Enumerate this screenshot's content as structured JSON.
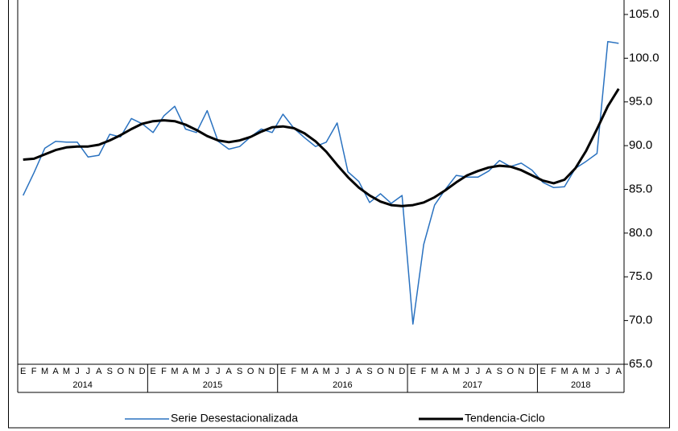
{
  "chart_data": {
    "type": "line",
    "groups": [
      {
        "name": "2014",
        "categories": [
          "E",
          "F",
          "M",
          "A",
          "M",
          "J",
          "J",
          "A",
          "S",
          "O",
          "N",
          "D"
        ]
      },
      {
        "name": "2015",
        "categories": [
          "E",
          "F",
          "M",
          "A",
          "M",
          "J",
          "J",
          "A",
          "S",
          "O",
          "N",
          "D"
        ]
      },
      {
        "name": "2016",
        "categories": [
          "E",
          "F",
          "M",
          "A",
          "M",
          "J",
          "J",
          "A",
          "S",
          "O",
          "N",
          "D"
        ]
      },
      {
        "name": "2017",
        "categories": [
          "E",
          "F",
          "M",
          "A",
          "M",
          "J",
          "J",
          "A",
          "S",
          "O",
          "N",
          "D"
        ]
      },
      {
        "name": "2018",
        "categories": [
          "E",
          "F",
          "M",
          "A",
          "M",
          "J",
          "J",
          "A"
        ]
      }
    ],
    "series": [
      {
        "name": "Serie Desestacionalizada",
        "color": "#2a72c0",
        "width": 1.5,
        "values": [
          84.3,
          86.9,
          89.7,
          90.5,
          90.4,
          90.4,
          88.7,
          88.9,
          91.3,
          91.0,
          93.1,
          92.5,
          91.5,
          93.4,
          94.5,
          91.9,
          91.5,
          94.0,
          90.5,
          89.6,
          89.9,
          91.0,
          91.9,
          91.5,
          93.6,
          92.0,
          90.9,
          89.9,
          90.4,
          92.6,
          87.0,
          85.9,
          83.5,
          84.5,
          83.4,
          84.3,
          69.6,
          78.7,
          83.2,
          85.0,
          86.6,
          86.4,
          86.4,
          87.1,
          88.3,
          87.6,
          88.0,
          87.2,
          85.8,
          85.2,
          85.3,
          87.4,
          88.2,
          89.1,
          101.9,
          101.7
        ]
      },
      {
        "name": "Tendencia-Ciclo",
        "color": "#000000",
        "width": 3,
        "values": [
          88.4,
          88.5,
          89.0,
          89.5,
          89.8,
          89.9,
          89.9,
          90.1,
          90.6,
          91.2,
          91.9,
          92.5,
          92.8,
          92.9,
          92.8,
          92.4,
          91.8,
          91.1,
          90.6,
          90.4,
          90.6,
          91.0,
          91.6,
          92.1,
          92.2,
          92.0,
          91.4,
          90.5,
          89.3,
          87.8,
          86.4,
          85.2,
          84.3,
          83.6,
          83.2,
          83.1,
          83.2,
          83.5,
          84.1,
          84.9,
          85.8,
          86.6,
          87.1,
          87.5,
          87.7,
          87.6,
          87.2,
          86.6,
          86.0,
          85.7,
          86.1,
          87.4,
          89.4,
          91.9,
          94.5,
          96.5
        ]
      }
    ],
    "ylim": [
      65,
      105
    ],
    "yticks": [
      {
        "value": 65,
        "label": "65.0"
      },
      {
        "value": 70,
        "label": "70.0"
      },
      {
        "value": 75,
        "label": "75.0"
      },
      {
        "value": 80,
        "label": "80.0"
      },
      {
        "value": 85,
        "label": "85.0"
      },
      {
        "value": 90,
        "label": "90.0"
      },
      {
        "value": 95,
        "label": "95.0"
      },
      {
        "value": 100,
        "label": "100.0"
      },
      {
        "value": 105,
        "label": "105.0"
      }
    ],
    "y_axis_side": "right",
    "legend": "bottom"
  }
}
